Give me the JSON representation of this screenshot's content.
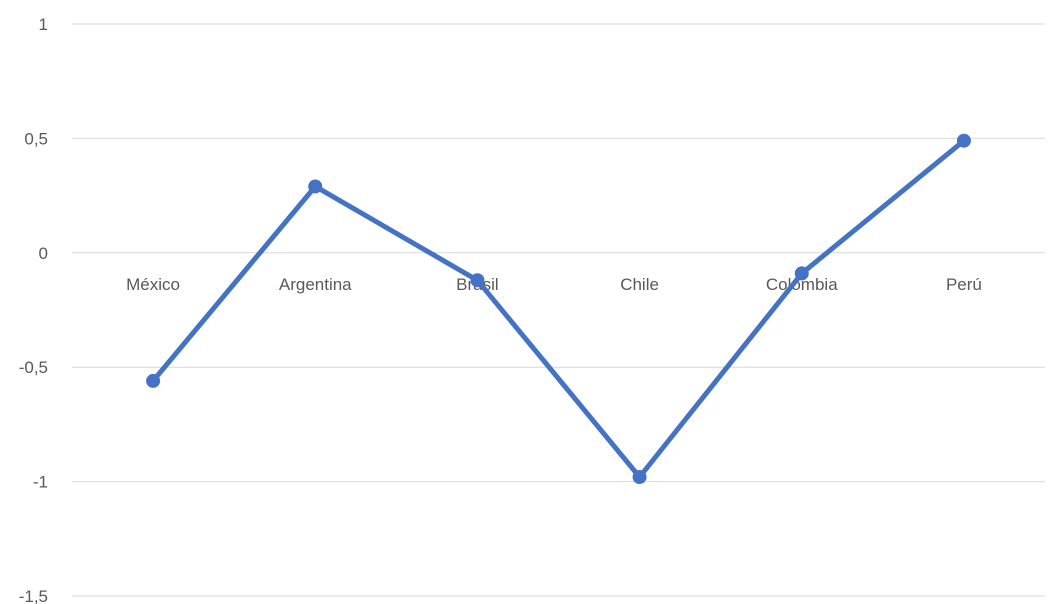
{
  "chart_data": {
    "type": "line",
    "title": "",
    "xlabel": "",
    "ylabel": "",
    "categories": [
      "México",
      "Argentina",
      "Brasil",
      "Chile",
      "Colombia",
      "Perú"
    ],
    "series": [
      {
        "values": [
          -0.56,
          0.29,
          -0.12,
          -0.98,
          -0.09,
          0.49
        ]
      }
    ],
    "ylim": [
      -1.5,
      1
    ],
    "y_ticks": [
      1,
      0.5,
      0,
      -0.5,
      -1,
      -1.5
    ],
    "y_tick_labels": [
      "1",
      "0,5",
      "0",
      "-0,5",
      "-1",
      "-1,5"
    ],
    "grid": true,
    "legend": "none",
    "colors": {
      "series": "#4472c4",
      "grid": "#d9d9d9",
      "text": "#595959"
    }
  }
}
